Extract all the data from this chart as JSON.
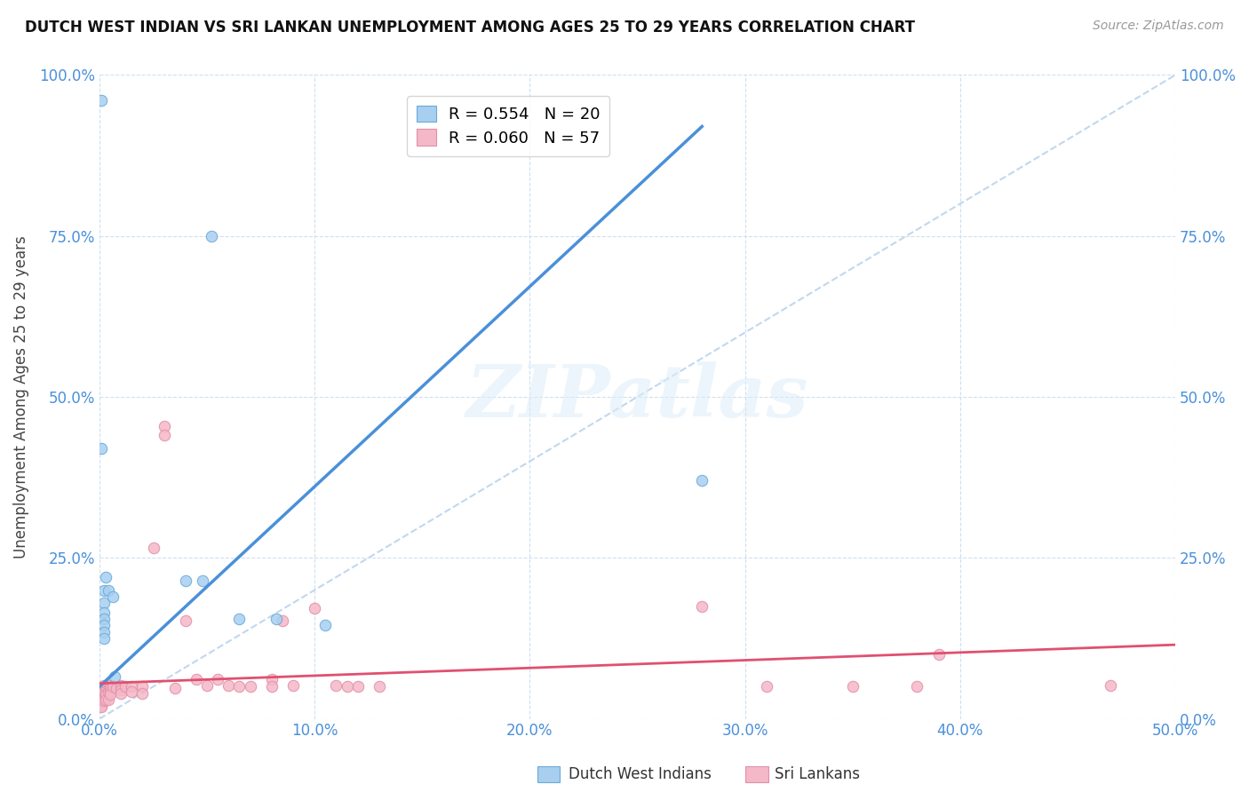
{
  "title": "DUTCH WEST INDIAN VS SRI LANKAN UNEMPLOYMENT AMONG AGES 25 TO 29 YEARS CORRELATION CHART",
  "source": "Source: ZipAtlas.com",
  "ylabel": "Unemployment Among Ages 25 to 29 years",
  "xlim": [
    0.0,
    0.5
  ],
  "ylim": [
    0.0,
    1.0
  ],
  "x_ticks": [
    0.0,
    0.1,
    0.2,
    0.3,
    0.4,
    0.5
  ],
  "x_tick_labels": [
    "0.0%",
    "10.0%",
    "20.0%",
    "30.0%",
    "40.0%",
    "50.0%"
  ],
  "y_ticks": [
    0.0,
    0.25,
    0.5,
    0.75,
    1.0
  ],
  "y_tick_labels": [
    "0.0%",
    "25.0%",
    "50.0%",
    "75.0%",
    "100.0%"
  ],
  "dutch_color": "#a8cff0",
  "dutch_line_color": "#4a90d9",
  "sri_color": "#f5b8c8",
  "sri_line_color": "#e05070",
  "diag_color": "#c0d8f0",
  "dutch_R": 0.554,
  "dutch_N": 20,
  "sri_R": 0.06,
  "sri_N": 57,
  "watermark": "ZIPatlas",
  "dutch_points": [
    [
      0.001,
      0.96
    ],
    [
      0.001,
      0.42
    ],
    [
      0.002,
      0.2
    ],
    [
      0.002,
      0.18
    ],
    [
      0.002,
      0.165
    ],
    [
      0.002,
      0.155
    ],
    [
      0.002,
      0.145
    ],
    [
      0.002,
      0.135
    ],
    [
      0.002,
      0.125
    ],
    [
      0.003,
      0.22
    ],
    [
      0.004,
      0.2
    ],
    [
      0.006,
      0.19
    ],
    [
      0.007,
      0.065
    ],
    [
      0.04,
      0.215
    ],
    [
      0.048,
      0.215
    ],
    [
      0.052,
      0.75
    ],
    [
      0.065,
      0.155
    ],
    [
      0.082,
      0.155
    ],
    [
      0.105,
      0.145
    ],
    [
      0.28,
      0.37
    ]
  ],
  "sri_points": [
    [
      0.001,
      0.045
    ],
    [
      0.001,
      0.035
    ],
    [
      0.001,
      0.03
    ],
    [
      0.001,
      0.028
    ],
    [
      0.001,
      0.022
    ],
    [
      0.001,
      0.02
    ],
    [
      0.001,
      0.018
    ],
    [
      0.002,
      0.052
    ],
    [
      0.002,
      0.045
    ],
    [
      0.002,
      0.042
    ],
    [
      0.002,
      0.032
    ],
    [
      0.002,
      0.028
    ],
    [
      0.003,
      0.042
    ],
    [
      0.003,
      0.038
    ],
    [
      0.003,
      0.03
    ],
    [
      0.004,
      0.042
    ],
    [
      0.004,
      0.03
    ],
    [
      0.005,
      0.052
    ],
    [
      0.005,
      0.048
    ],
    [
      0.005,
      0.042
    ],
    [
      0.005,
      0.038
    ],
    [
      0.006,
      0.05
    ],
    [
      0.008,
      0.048
    ],
    [
      0.01,
      0.052
    ],
    [
      0.01,
      0.045
    ],
    [
      0.01,
      0.04
    ],
    [
      0.012,
      0.05
    ],
    [
      0.015,
      0.05
    ],
    [
      0.015,
      0.042
    ],
    [
      0.02,
      0.05
    ],
    [
      0.02,
      0.04
    ],
    [
      0.025,
      0.265
    ],
    [
      0.03,
      0.455
    ],
    [
      0.03,
      0.44
    ],
    [
      0.035,
      0.048
    ],
    [
      0.04,
      0.152
    ],
    [
      0.045,
      0.062
    ],
    [
      0.05,
      0.052
    ],
    [
      0.055,
      0.062
    ],
    [
      0.06,
      0.052
    ],
    [
      0.065,
      0.05
    ],
    [
      0.07,
      0.05
    ],
    [
      0.08,
      0.062
    ],
    [
      0.08,
      0.05
    ],
    [
      0.085,
      0.152
    ],
    [
      0.09,
      0.052
    ],
    [
      0.1,
      0.172
    ],
    [
      0.11,
      0.052
    ],
    [
      0.115,
      0.05
    ],
    [
      0.12,
      0.05
    ],
    [
      0.13,
      0.05
    ],
    [
      0.28,
      0.175
    ],
    [
      0.31,
      0.05
    ],
    [
      0.35,
      0.05
    ],
    [
      0.38,
      0.05
    ],
    [
      0.39,
      0.1
    ],
    [
      0.47,
      0.052
    ]
  ],
  "dutch_line_x": [
    0.0,
    0.28
  ],
  "dutch_line_y": [
    0.05,
    0.92
  ],
  "sri_line_x": [
    0.0,
    0.5
  ],
  "sri_line_y": [
    0.055,
    0.115
  ],
  "diag_line_x": [
    0.0,
    0.5
  ],
  "diag_line_y": [
    0.0,
    1.0
  ]
}
